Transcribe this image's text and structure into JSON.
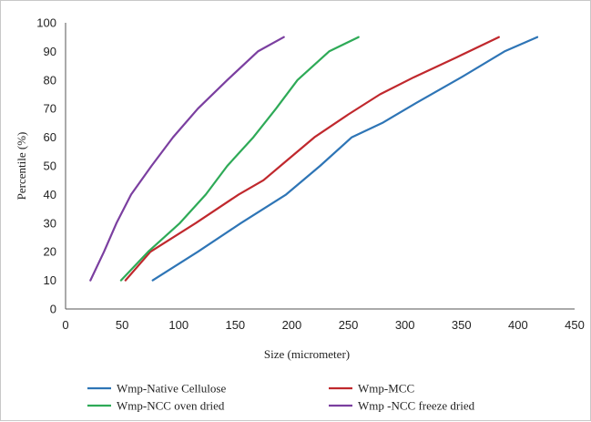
{
  "chart_data": {
    "type": "line",
    "xlabel": "Size (micrometer)",
    "ylabel": "Percentile (%)",
    "xlim": [
      0,
      450
    ],
    "ylim": [
      0,
      100
    ],
    "x_ticks": [
      0,
      50,
      100,
      150,
      200,
      250,
      300,
      350,
      400,
      450
    ],
    "y_ticks": [
      0,
      10,
      20,
      30,
      40,
      50,
      60,
      70,
      80,
      90,
      100
    ],
    "grid": false,
    "legend_position": "bottom",
    "series": [
      {
        "name": "Wmp-Native Cellulose",
        "color": "#2E75B6",
        "points": [
          [
            77,
            10
          ],
          [
            117,
            20
          ],
          [
            155,
            30
          ],
          [
            195,
            40
          ],
          [
            225,
            50
          ],
          [
            253,
            60
          ],
          [
            280,
            65
          ],
          [
            310,
            72
          ],
          [
            350,
            81
          ],
          [
            388,
            90
          ],
          [
            417,
            95
          ]
        ]
      },
      {
        "name": "Wmp-MCC",
        "color": "#C0282D",
        "points": [
          [
            53,
            10
          ],
          [
            75,
            20
          ],
          [
            115,
            30
          ],
          [
            153,
            40
          ],
          [
            175,
            45
          ],
          [
            193,
            51
          ],
          [
            220,
            60
          ],
          [
            250,
            68
          ],
          [
            278,
            75
          ],
          [
            308,
            81
          ],
          [
            346,
            88
          ],
          [
            383,
            95
          ]
        ]
      },
      {
        "name": "Wmp-NCC oven dried",
        "color": "#2EAA57",
        "points": [
          [
            49,
            10
          ],
          [
            73,
            20
          ],
          [
            101,
            30
          ],
          [
            124,
            40
          ],
          [
            143,
            50
          ],
          [
            166,
            60
          ],
          [
            186,
            70
          ],
          [
            205,
            80
          ],
          [
            233,
            90
          ],
          [
            259,
            95
          ]
        ]
      },
      {
        "name": "Wmp -NCC freeze dried",
        "color": "#7B3FA0",
        "points": [
          [
            22,
            10
          ],
          [
            34,
            20
          ],
          [
            45,
            30
          ],
          [
            58,
            40
          ],
          [
            76,
            50
          ],
          [
            95,
            60
          ],
          [
            117,
            70
          ],
          [
            143,
            80
          ],
          [
            170,
            90
          ],
          [
            193,
            95
          ]
        ]
      }
    ]
  }
}
